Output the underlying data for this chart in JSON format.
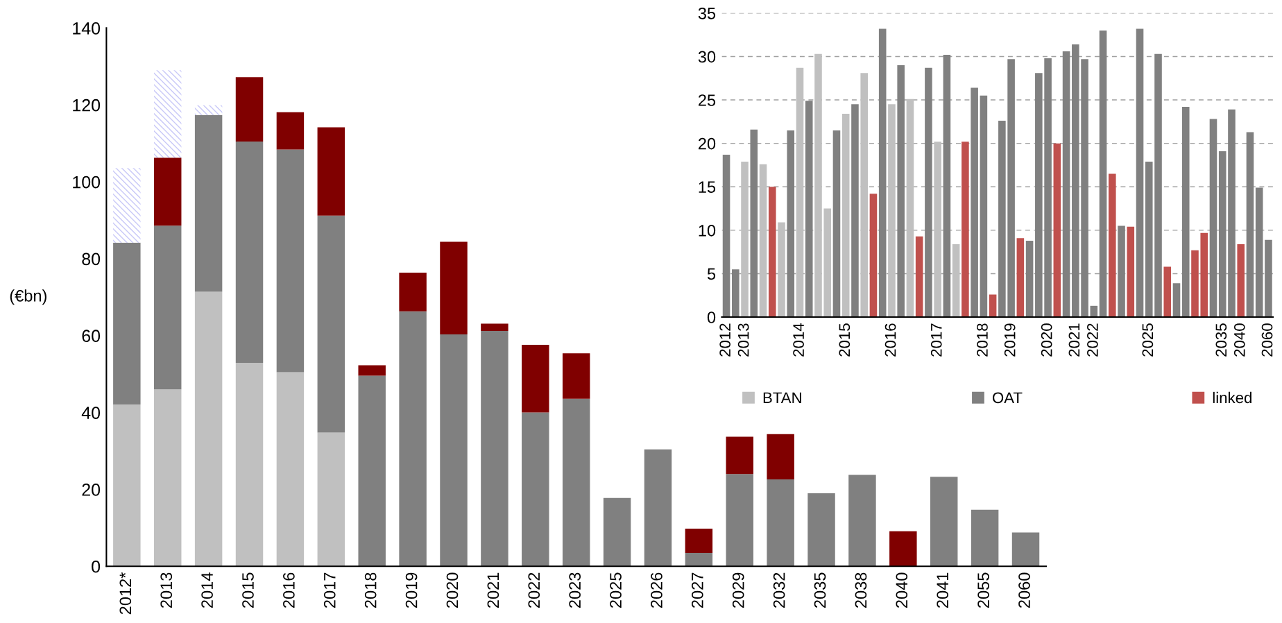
{
  "chart_data": [
    {
      "type": "bar",
      "stacked": true,
      "ylabel": "(€bn)",
      "ylim": [
        0,
        140
      ],
      "yticks": [
        0,
        20,
        40,
        60,
        80,
        100,
        120,
        140
      ],
      "grid": false,
      "legend": false,
      "categories": [
        "2012*",
        "2013",
        "2014",
        "2015",
        "2016",
        "2017",
        "2018",
        "2019",
        "2020",
        "2021",
        "2022",
        "2023",
        "2025",
        "2026",
        "2027",
        "2029",
        "2032",
        "2035",
        "2038",
        "2040",
        "2041",
        "2055",
        "2060"
      ],
      "series": [
        {
          "color": "#c0c0c0",
          "values": [
            42.1,
            46.0,
            71.4,
            52.9,
            50.5,
            34.8,
            null,
            null,
            null,
            null,
            null,
            null,
            null,
            null,
            null,
            null,
            null,
            null,
            null,
            null,
            null,
            null,
            null
          ]
        },
        {
          "color": "#808080",
          "values": [
            42.1,
            42.6,
            46.0,
            57.6,
            57.9,
            56.4,
            49.6,
            66.3,
            60.3,
            61.2,
            40.0,
            43.6,
            17.8,
            30.4,
            3.5,
            24.0,
            22.6,
            19.0,
            23.8,
            null,
            23.3,
            14.7,
            8.8
          ]
        },
        {
          "color": "#800000",
          "values": [
            null,
            17.7,
            null,
            16.7,
            9.7,
            23.0,
            2.7,
            10.1,
            24.1,
            1.9,
            17.6,
            11.8,
            null,
            null,
            6.3,
            9.7,
            11.8,
            null,
            null,
            9.1,
            null,
            null,
            null
          ]
        },
        {
          "color": "#c8c8f8",
          "values": [
            19.4,
            22.7,
            2.5,
            null,
            null,
            null,
            null,
            null,
            null,
            null,
            null,
            null,
            null,
            null,
            null,
            null,
            null,
            null,
            null,
            null,
            null,
            null,
            null
          ]
        }
      ]
    },
    {
      "type": "bar",
      "stacked": true,
      "ylim": [
        0,
        35
      ],
      "yticks": [
        0,
        5,
        10,
        15,
        20,
        25,
        30,
        35
      ],
      "grid": "y",
      "legend": "bottom",
      "categories": [
        "2012",
        null,
        "2013",
        null,
        null,
        null,
        null,
        null,
        "2014",
        null,
        null,
        null,
        null,
        "2015",
        null,
        null,
        null,
        null,
        "2016",
        null,
        null,
        null,
        null,
        "2017",
        null,
        null,
        null,
        null,
        "2018",
        null,
        null,
        "2019",
        null,
        null,
        null,
        "2020",
        null,
        null,
        "2021",
        null,
        "2022",
        null,
        null,
        null,
        null,
        null,
        "2025",
        null,
        null,
        null,
        null,
        null,
        null,
        null,
        "2035",
        null,
        "2040",
        null,
        null,
        "2060"
      ],
      "series": [
        {
          "name": "BTAN",
          "color": "#c0c0c0",
          "values": [
            null,
            null,
            17.9,
            null,
            17.6,
            null,
            10.9,
            null,
            28.7,
            null,
            30.3,
            12.5,
            null,
            23.4,
            null,
            28.1,
            null,
            null,
            24.5,
            null,
            25.1,
            null,
            null,
            20.2,
            null,
            8.4,
            null,
            null,
            null,
            null,
            null,
            null,
            null,
            null,
            null,
            null,
            null,
            null,
            null,
            null,
            null,
            null,
            null,
            null,
            null,
            null,
            null,
            null,
            null,
            null,
            null,
            null,
            null,
            null,
            null,
            null,
            null,
            null,
            null,
            null
          ]
        },
        {
          "name": "OAT",
          "color": "#808080",
          "values": [
            18.7,
            5.5,
            null,
            21.6,
            null,
            null,
            null,
            21.5,
            null,
            24.9,
            null,
            null,
            21.5,
            null,
            24.5,
            null,
            null,
            33.2,
            null,
            29.0,
            null,
            null,
            28.7,
            null,
            30.2,
            null,
            null,
            26.4,
            25.5,
            null,
            22.6,
            29.7,
            null,
            8.8,
            28.1,
            29.8,
            null,
            30.6,
            31.4,
            29.7,
            1.3,
            33.0,
            null,
            10.5,
            null,
            33.2,
            17.9,
            30.3,
            null,
            3.9,
            24.2,
            null,
            null,
            22.8,
            19.1,
            23.9,
            null,
            21.3,
            14.9,
            8.9
          ]
        },
        {
          "name": "linked",
          "color": "#c0504d",
          "values": [
            null,
            null,
            null,
            null,
            null,
            15.0,
            null,
            null,
            null,
            null,
            null,
            null,
            null,
            null,
            null,
            null,
            14.2,
            null,
            null,
            null,
            null,
            9.3,
            null,
            null,
            null,
            null,
            20.2,
            null,
            null,
            2.6,
            null,
            null,
            9.1,
            null,
            null,
            null,
            20.0,
            null,
            null,
            null,
            null,
            null,
            16.5,
            null,
            10.4,
            null,
            null,
            null,
            5.8,
            null,
            null,
            7.7,
            9.7,
            null,
            null,
            null,
            8.4,
            null,
            null,
            null
          ]
        }
      ]
    }
  ]
}
